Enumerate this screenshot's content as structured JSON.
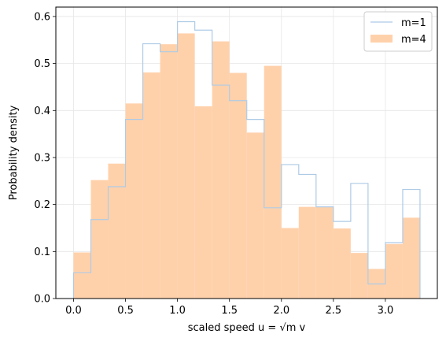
{
  "chart_data": {
    "type": "histogram",
    "xlabel": "scaled speed u = √m v",
    "ylabel": "Probability density",
    "xlim": [
      -0.17,
      3.5
    ],
    "ylim": [
      0,
      0.62
    ],
    "xticks": [
      0.0,
      0.5,
      1.0,
      1.5,
      2.0,
      2.5,
      3.0
    ],
    "yticks": [
      0.0,
      0.1,
      0.2,
      0.3,
      0.4,
      0.5,
      0.6
    ],
    "grid": true,
    "legend_position": "top-right",
    "bin_edges": [
      0.0,
      0.1667,
      0.3333,
      0.5,
      0.6667,
      0.8333,
      1.0,
      1.1667,
      1.3333,
      1.5,
      1.6667,
      1.8333,
      2.0,
      2.1667,
      2.3333,
      2.5,
      2.6667,
      2.8333,
      3.0,
      3.1667,
      3.3333
    ],
    "series": [
      {
        "name": "m=1",
        "style": "step",
        "color": "#aecbe6",
        "values": [
          0.055,
          0.168,
          0.238,
          0.381,
          0.542,
          0.525,
          0.589,
          0.571,
          0.454,
          0.421,
          0.381,
          0.193,
          0.285,
          0.264,
          0.195,
          0.164,
          0.245,
          0.031,
          0.119,
          0.232
        ]
      },
      {
        "name": "m=4",
        "style": "filled",
        "color": "#ffd1ab",
        "values": [
          0.098,
          0.252,
          0.287,
          0.415,
          0.481,
          0.541,
          0.564,
          0.409,
          0.547,
          0.48,
          0.353,
          0.495,
          0.15,
          0.195,
          0.195,
          0.149,
          0.097,
          0.063,
          0.116,
          0.172
        ]
      }
    ]
  }
}
